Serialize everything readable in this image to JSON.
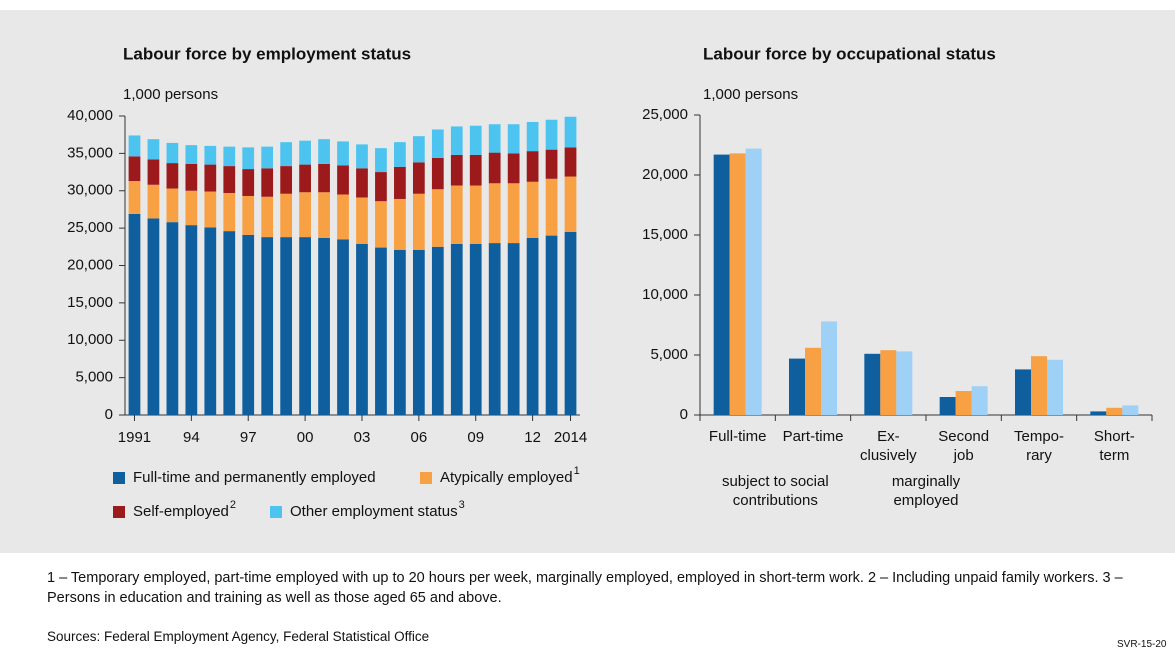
{
  "chart_data": [
    {
      "type": "stacked_bar",
      "title": "Labour force by employment status",
      "y_unit": "1,000 persons",
      "categories": [
        "1991",
        null,
        null,
        "94",
        null,
        null,
        "97",
        null,
        null,
        "00",
        null,
        null,
        "03",
        null,
        null,
        "06",
        null,
        null,
        "09",
        null,
        null,
        "12",
        null,
        "2014"
      ],
      "series": [
        {
          "name": "Full-time and permanently employed",
          "color": "#0f5f9e",
          "values": [
            26900,
            26300,
            25800,
            25400,
            25100,
            24600,
            24100,
            23800,
            23800,
            23800,
            23700,
            23500,
            22900,
            22400,
            22100,
            22100,
            22500,
            22900,
            22900,
            23000,
            23000,
            23700,
            24000,
            24500
          ]
        },
        {
          "name": "Atypically employed",
          "footnote": "1",
          "color": "#f7a044",
          "values": [
            4400,
            4500,
            4500,
            4600,
            4800,
            5100,
            5200,
            5400,
            5800,
            6000,
            6100,
            6000,
            6200,
            6200,
            6800,
            7500,
            7700,
            7800,
            7800,
            8000,
            8000,
            7500,
            7600,
            7400
          ]
        },
        {
          "name": "Self-employed",
          "footnote": "2",
          "color": "#9c1a1c",
          "values": [
            3300,
            3400,
            3400,
            3600,
            3600,
            3600,
            3600,
            3800,
            3700,
            3700,
            3800,
            3900,
            3900,
            3900,
            4300,
            4200,
            4200,
            4100,
            4100,
            4100,
            4000,
            4100,
            3900,
            3900
          ]
        },
        {
          "name": "Other employment status",
          "footnote": "3",
          "color": "#4dc3ef",
          "values": [
            2800,
            2700,
            2700,
            2500,
            2500,
            2600,
            2900,
            2900,
            3200,
            3200,
            3300,
            3200,
            3200,
            3200,
            3300,
            3500,
            3800,
            3800,
            3900,
            3800,
            3900,
            3900,
            4000,
            4100
          ]
        }
      ],
      "ylim": [
        0,
        40000
      ],
      "yticks": [
        0,
        {
          "value": 5000,
          "label": "5,000"
        },
        {
          "value": 10000,
          "label": "10,000"
        },
        {
          "value": 15000,
          "label": "15,000"
        },
        {
          "value": 20000,
          "label": "20,000"
        },
        {
          "value": 25000,
          "label": "25,000"
        },
        {
          "value": 30000,
          "label": "30,000"
        },
        {
          "value": 35000,
          "label": "35,000"
        },
        {
          "value": 40000,
          "label": "40,000"
        }
      ],
      "grid": false
    },
    {
      "type": "grouped_bar",
      "title": "Labour force by occupational status",
      "y_unit": "1,000 persons",
      "categories": [
        "Full-time",
        "Part-time",
        "Ex-\nclusively",
        "Second\njob",
        "Tempo-\nrary",
        "Short-\nterm"
      ],
      "group_labels": [
        "subject to social\ncontributions",
        "marginally\nemployed"
      ],
      "series": [
        {
          "color": "#0f5f9e",
          "values": [
            21700,
            4700,
            5100,
            1500,
            3800,
            300
          ]
        },
        {
          "color": "#f7a044",
          "values": [
            21800,
            5600,
            5400,
            2000,
            4900,
            600
          ]
        },
        {
          "color": "#9fd1f6",
          "values": [
            22200,
            7800,
            5300,
            2400,
            4600,
            800
          ]
        }
      ],
      "ylim": [
        0,
        25000
      ],
      "yticks": [
        0,
        {
          "value": 5000,
          "label": "5,000"
        },
        {
          "value": 10000,
          "label": "10,000"
        },
        {
          "value": 15000,
          "label": "15,000"
        },
        {
          "value": 20000,
          "label": "20,000"
        },
        {
          "value": 25000,
          "label": "25,000"
        }
      ],
      "grid": false
    }
  ],
  "footnotes": "1 – Temporary employed, part-time employed with up to 20 hours per week, marginally employed, employed in short-term work.  2 – Including unpaid family workers.  3 – Persons in education and training as well as those aged 65 and above.",
  "sources": "Sources: Federal Employment Agency, Federal Statistical Office",
  "code": "SVR-15-20"
}
